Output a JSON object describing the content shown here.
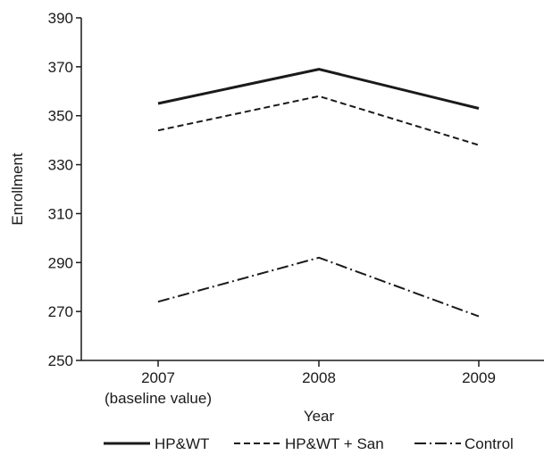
{
  "chart_data": {
    "type": "line",
    "title": "",
    "xlabel": "Year",
    "ylabel": "Enrollment",
    "categories": [
      "2007",
      "2008",
      "2009"
    ],
    "category_sublabels": [
      "(baseline value)",
      "",
      ""
    ],
    "ylim": [
      250,
      390
    ],
    "yticks": [
      250,
      270,
      290,
      310,
      330,
      350,
      370,
      390
    ],
    "grid": false,
    "legend_position": "bottom",
    "series": [
      {
        "name": "HP&WT",
        "values": [
          355,
          369,
          353
        ],
        "style": "solid",
        "color": "#1a1a1a"
      },
      {
        "name": "HP&WT + San",
        "values": [
          344,
          358,
          338
        ],
        "style": "dashed",
        "color": "#1a1a1a"
      },
      {
        "name": "Control",
        "values": [
          274,
          292,
          268
        ],
        "style": "dash-dot",
        "color": "#1a1a1a"
      }
    ]
  }
}
